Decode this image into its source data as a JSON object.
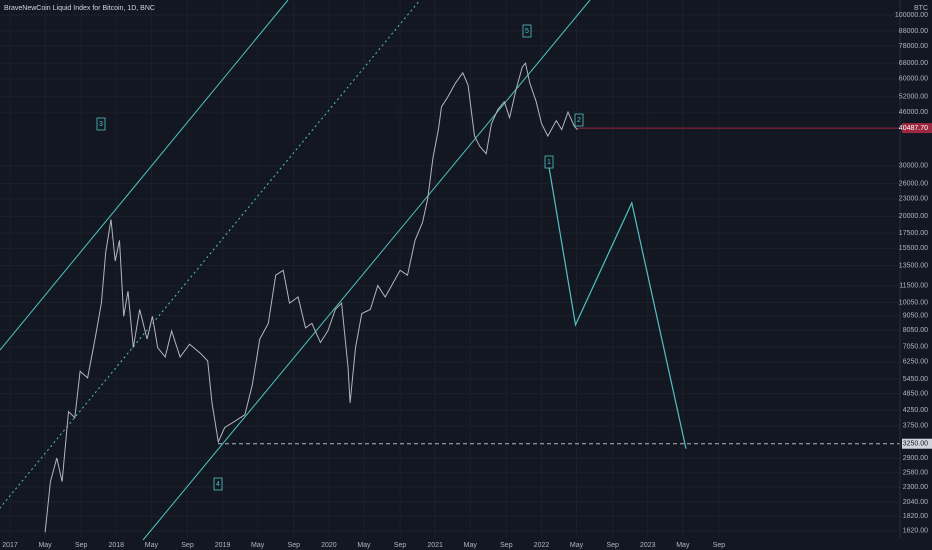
{
  "chart_data": {
    "type": "line",
    "title": "BraveNewCoin Liquid Index for Bitcoin, 1D, BNC",
    "currency": "BTC",
    "log_scale": true,
    "grid": true,
    "xlim": [
      2016.906,
      2025.373
    ],
    "ylim": [
      1530,
      112700
    ],
    "xticks": [
      {
        "value": 2017.0,
        "label": "2017"
      },
      {
        "value": 2017.33,
        "label": "May"
      },
      {
        "value": 2017.67,
        "label": "Sep"
      },
      {
        "value": 2018.0,
        "label": "2018"
      },
      {
        "value": 2018.33,
        "label": "May"
      },
      {
        "value": 2018.67,
        "label": "Sep"
      },
      {
        "value": 2019.0,
        "label": "2019"
      },
      {
        "value": 2019.33,
        "label": "May"
      },
      {
        "value": 2019.67,
        "label": "Sep"
      },
      {
        "value": 2020.0,
        "label": "2020"
      },
      {
        "value": 2020.33,
        "label": "May"
      },
      {
        "value": 2020.67,
        "label": "Sep"
      },
      {
        "value": 2021.0,
        "label": "2021"
      },
      {
        "value": 2021.33,
        "label": "May"
      },
      {
        "value": 2021.67,
        "label": "Sep"
      },
      {
        "value": 2022.0,
        "label": "2022"
      },
      {
        "value": 2022.33,
        "label": "May"
      },
      {
        "value": 2022.67,
        "label": "Sep"
      },
      {
        "value": 2023.0,
        "label": "2023"
      },
      {
        "value": 2023.33,
        "label": "May"
      },
      {
        "value": 2023.67,
        "label": "Sep"
      }
    ],
    "yticks": [
      {
        "value": 1620,
        "label": "1620.00"
      },
      {
        "value": 1820,
        "label": "1820.00"
      },
      {
        "value": 2040,
        "label": "2040.00"
      },
      {
        "value": 2300,
        "label": "2300.00"
      },
      {
        "value": 2580,
        "label": "2580.00"
      },
      {
        "value": 2900,
        "label": "2900.00"
      },
      {
        "value": 3750,
        "label": "3750.00"
      },
      {
        "value": 4250,
        "label": "4250.00"
      },
      {
        "value": 4850,
        "label": "4850.00"
      },
      {
        "value": 5450,
        "label": "5450.00"
      },
      {
        "value": 6250,
        "label": "6250.00"
      },
      {
        "value": 7050,
        "label": "7050.00"
      },
      {
        "value": 8050,
        "label": "8050.00"
      },
      {
        "value": 9050,
        "label": "9050.00"
      },
      {
        "value": 10050,
        "label": "10050.00"
      },
      {
        "value": 11500,
        "label": "11500.00"
      },
      {
        "value": 13500,
        "label": "13500.00"
      },
      {
        "value": 15500,
        "label": "15500.00"
      },
      {
        "value": 17500,
        "label": "17500.00"
      },
      {
        "value": 20000,
        "label": "20000.00"
      },
      {
        "value": 23000,
        "label": "23000.00"
      },
      {
        "value": 26000,
        "label": "26000.00"
      },
      {
        "value": 30000,
        "label": "30000.00"
      },
      {
        "value": 46000,
        "label": "46000.00"
      },
      {
        "value": 52000,
        "label": "52000.00"
      },
      {
        "value": 60000,
        "label": "60000.00"
      },
      {
        "value": 68000,
        "label": "68000.00"
      },
      {
        "value": 78000,
        "label": "78000.00"
      },
      {
        "value": 88000,
        "label": "88000.00"
      },
      {
        "value": 100000,
        "label": "100000.00"
      }
    ],
    "series": [
      {
        "color": "#b2b5be",
        "x": [
          2017.33,
          2017.38,
          2017.44,
          2017.49,
          2017.55,
          2017.61,
          2017.66,
          2017.73,
          2017.8,
          2017.86,
          2017.9,
          2017.95,
          2017.99,
          2018.03,
          2018.07,
          2018.11,
          2018.16,
          2018.22,
          2018.29,
          2018.34,
          2018.39,
          2018.46,
          2018.52,
          2018.6,
          2018.69,
          2018.79,
          2018.86,
          2018.9,
          2018.96,
          2019.02,
          2019.12,
          2019.21,
          2019.28,
          2019.35,
          2019.43,
          2019.5,
          2019.57,
          2019.63,
          2019.71,
          2019.78,
          2019.84,
          2019.92,
          2019.99,
          2020.06,
          2020.12,
          2020.18,
          2020.2,
          2020.25,
          2020.31,
          2020.39,
          2020.46,
          2020.53,
          2020.59,
          2020.67,
          2020.74,
          2020.81,
          2020.88,
          2020.93,
          2020.98,
          2021.03,
          2021.06,
          2021.12,
          2021.19,
          2021.26,
          2021.31,
          2021.37,
          2021.42,
          2021.48,
          2021.53,
          2021.59,
          2021.65,
          2021.7,
          2021.76,
          2021.82,
          2021.85,
          2021.89,
          2021.95,
          2022.0,
          2022.06,
          2022.14,
          2022.19,
          2022.25,
          2022.31,
          2022.34
        ],
        "values": [
          1600,
          2400,
          2900,
          2400,
          4200,
          4000,
          5800,
          5500,
          7500,
          10000,
          15000,
          19500,
          14000,
          16500,
          9000,
          11000,
          7000,
          9500,
          7500,
          9000,
          7000,
          6500,
          8000,
          6500,
          7200,
          6700,
          6300,
          4500,
          3300,
          3700,
          3900,
          4100,
          5200,
          7500,
          8500,
          12500,
          13000,
          10000,
          10500,
          8200,
          8500,
          7300,
          8000,
          9500,
          10000,
          6000,
          4500,
          7000,
          9200,
          9500,
          11500,
          10500,
          11500,
          13000,
          12500,
          16500,
          19000,
          23000,
          32000,
          40000,
          48000,
          52000,
          58000,
          63000,
          57000,
          38000,
          35000,
          33000,
          42000,
          47000,
          50000,
          44000,
          55000,
          66000,
          68000,
          58000,
          50000,
          42000,
          38000,
          43000,
          40000,
          46000,
          41000,
          40000
        ]
      },
      {
        "color": "#4fc3c0",
        "x": [
          2022.06,
          2022.32,
          2022.85,
          2023.36
        ],
        "values": [
          31400,
          8400,
          22270,
          3120
        ]
      }
    ],
    "annotations": [
      "3",
      "4",
      "5",
      "1",
      "2"
    ],
    "price_labels": [
      {
        "value": 40487.7,
        "label": "40487.70"
      },
      {
        "value": 3250,
        "label": "3250.00"
      }
    ]
  }
}
